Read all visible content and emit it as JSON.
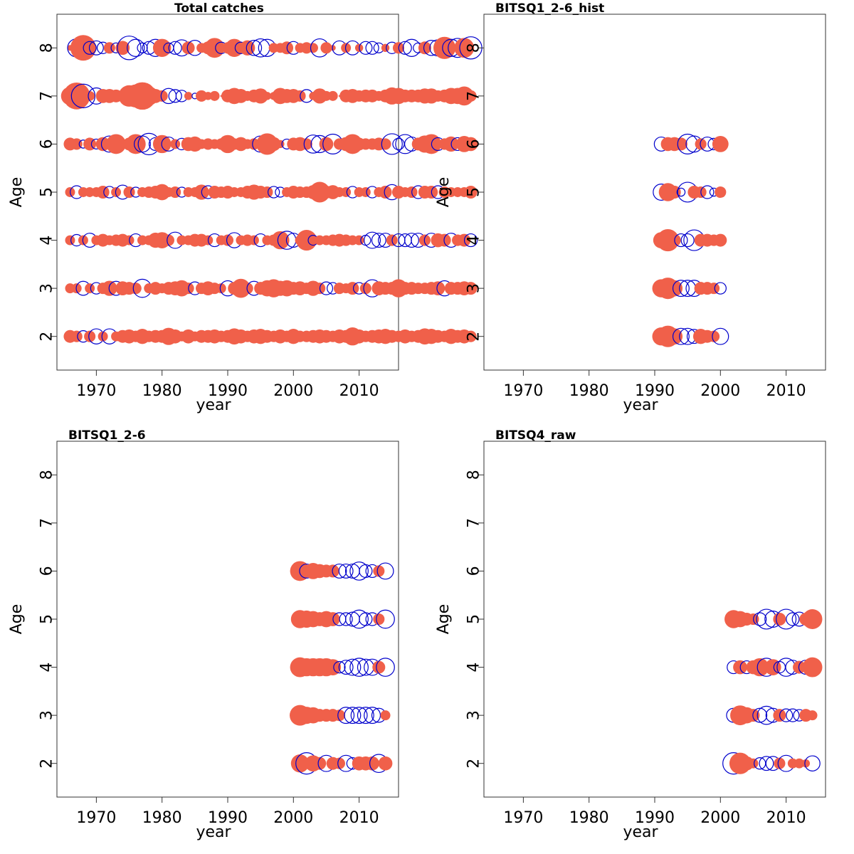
{
  "colors": {
    "positive": "#f0604a",
    "negative": "#0000cc"
  },
  "chart_data": [
    {
      "type": "bubble",
      "title": "Total catches",
      "xlabel": "year",
      "ylabel": "Age",
      "xlim": [
        1964,
        2016
      ],
      "ylim": [
        1.3,
        8.7
      ],
      "xticks": [
        1970,
        1980,
        1990,
        2000,
        2010
      ],
      "yticks": [
        2,
        3,
        4,
        5,
        6,
        7,
        8
      ],
      "ages": [
        2,
        3,
        4,
        5,
        6,
        7,
        8
      ],
      "year_start": 1966,
      "residuals": {
        "8": [
          0.1,
          -1.0,
          2.0,
          -0.5,
          -0.6,
          -0.4,
          0.4,
          -0.3,
          0.6,
          -1.7,
          -0.9,
          -0.3,
          -0.5,
          -0.9,
          1.0,
          -0.3,
          -0.5,
          -0.8,
          0.5,
          -0.7,
          0.3,
          0.5,
          1.2,
          -0.4,
          0.4,
          1.0,
          -0.4,
          0.7,
          -0.7,
          -1.0,
          -0.9,
          0.3,
          0.3,
          0.5,
          -0.5,
          0.3,
          0.4,
          0.3,
          -1.0,
          0.4,
          0.1,
          -0.6,
          0.3,
          -0.6,
          0.2,
          -0.5,
          -0.5,
          -0.3,
          0.2,
          -0.4,
          0.4,
          -0.5,
          -0.9,
          -0.3,
          0.5,
          -0.7,
          -0.8,
          1.5,
          -0.9,
          -1.1,
          1.2,
          -1.5
        ],
        "7": [
          1.0,
          2.2,
          -1.7,
          0.3,
          -0.8,
          0.6,
          0.6,
          0.5,
          0.3,
          1.4,
          1.6,
          2.3,
          1.1,
          0.6,
          0.4,
          -0.7,
          -0.5,
          -0.4,
          0.2,
          -0.1,
          0.4,
          0.2,
          0.3,
          0.0,
          0.5,
          0.8,
          0.6,
          0.3,
          0.5,
          0.7,
          0.2,
          0.2,
          0.8,
          0.6,
          0.6,
          0.4,
          -0.5,
          0.2,
          0.7,
          0.3,
          0.3,
          0.0,
          0.5,
          0.6,
          0.4,
          0.5,
          0.5,
          0.3,
          0.5,
          0.9,
          0.8,
          0.5,
          0.5,
          0.5,
          0.7,
          0.7,
          0.4,
          0.5,
          0.8,
          0.8,
          1.1,
          0.4
        ],
        "6": [
          0.5,
          0.4,
          -0.2,
          0.5,
          -0.3,
          0.6,
          -0.8,
          1.2,
          0.3,
          0.5,
          1.2,
          -0.8,
          -1.4,
          -0.5,
          1.0,
          -0.6,
          0.3,
          -0.4,
          0.6,
          0.7,
          0.3,
          0.4,
          0.3,
          0.4,
          1.0,
          0.4,
          0.6,
          0.3,
          0.4,
          -0.8,
          1.4,
          0.6,
          0.2,
          -0.3,
          0.5,
          0.6,
          0.4,
          -1.0,
          -0.9,
          0.6,
          -1.2,
          0.4,
          0.6,
          1.2,
          0.5,
          0.4,
          0.4,
          0.5,
          0.4,
          -1.3,
          -0.4,
          -1.1,
          -0.6,
          0.5,
          0.9,
          1.2,
          -0.5,
          0.4,
          0.7,
          -0.5,
          0.8,
          0.6
        ],
        "5": [
          0.3,
          -0.5,
          0.3,
          0.3,
          0.3,
          0.5,
          -0.4,
          0.3,
          -0.6,
          0.4,
          -0.3,
          0.3,
          0.4,
          0.5,
          0.8,
          0.3,
          0.4,
          -0.3,
          0.3,
          0.3,
          0.7,
          -0.5,
          0.5,
          0.4,
          0.5,
          0.3,
          0.3,
          0.5,
          0.7,
          0.5,
          0.4,
          -0.4,
          -0.3,
          0.3,
          0.5,
          0.4,
          0.4,
          0.6,
          1.3,
          0.5,
          0.6,
          0.3,
          0.3,
          -0.4,
          0.3,
          0.3,
          -0.4,
          0.3,
          0.5,
          -0.7,
          0.5,
          0.3,
          0.4,
          -0.5,
          0.5,
          0.5,
          -0.5,
          0.4,
          0.3,
          0.3,
          0.3,
          0.5
        ],
        "4": [
          0.3,
          -0.4,
          0.3,
          -0.6,
          0.3,
          0.5,
          0.3,
          0.4,
          0.5,
          0.3,
          -0.5,
          0.3,
          0.3,
          0.7,
          0.8,
          0.4,
          -0.8,
          0.3,
          0.3,
          0.5,
          0.5,
          0.3,
          -0.5,
          0.3,
          0.4,
          -0.7,
          0.3,
          0.4,
          0.3,
          -0.5,
          0.3,
          0.4,
          1.0,
          -1.0,
          -0.6,
          0.3,
          1.3,
          -0.3,
          0.3,
          0.3,
          0.4,
          0.5,
          0.4,
          0.3,
          0.3,
          -0.3,
          -0.8,
          -0.6,
          -0.6,
          0.4,
          -0.5,
          -0.5,
          -0.6,
          -0.6,
          0.4,
          -0.6,
          0.6,
          0.5,
          -0.6,
          0.4,
          0.5,
          -0.5
        ],
        "3": [
          0.3,
          0.3,
          -0.6,
          0.3,
          -0.4,
          0.4,
          0.7,
          -0.6,
          0.6,
          0.5,
          0.4,
          -1.0,
          0.3,
          0.5,
          0.3,
          0.5,
          0.6,
          0.8,
          0.4,
          -0.5,
          0.4,
          0.6,
          0.4,
          0.3,
          -0.7,
          0.5,
          1.1,
          0.4,
          -0.6,
          0.5,
          0.8,
          1.0,
          0.7,
          0.8,
          0.5,
          0.6,
          0.4,
          0.7,
          0.4,
          -0.5,
          -0.4,
          0.4,
          0.3,
          0.5,
          -0.4,
          0.4,
          -0.9,
          0.6,
          0.5,
          0.5,
          1.0,
          0.5,
          0.5,
          0.4,
          0.4,
          0.5,
          0.6,
          -0.7,
          0.5,
          0.5,
          0.6,
          0.5
        ],
        "2": [
          0.5,
          0.4,
          -0.4,
          0.4,
          -0.7,
          0.3,
          -0.7,
          0.3,
          0.5,
          0.6,
          0.4,
          0.7,
          0.4,
          0.5,
          0.5,
          0.9,
          0.6,
          0.3,
          0.6,
          0.3,
          0.5,
          0.5,
          0.6,
          0.4,
          0.5,
          0.8,
          0.6,
          0.4,
          0.6,
          0.7,
          0.5,
          0.4,
          0.6,
          0.4,
          0.7,
          0.4,
          0.4,
          0.5,
          0.6,
          0.5,
          0.4,
          0.6,
          0.5,
          1.0,
          0.6,
          0.4,
          0.5,
          0.6,
          0.7,
          0.5,
          0.4,
          0.6,
          0.4,
          0.5,
          0.8,
          0.7,
          0.5,
          0.4,
          0.7,
          0.5,
          0.6,
          0.4
        ]
      }
    },
    {
      "type": "bubble",
      "title": "BITSQ1_2-6_hist",
      "xlabel": "year",
      "ylabel": "Age",
      "xlim": [
        1964,
        2016
      ],
      "ylim": [
        1.3,
        8.7
      ],
      "xticks": [
        1970,
        1980,
        1990,
        2000,
        2010
      ],
      "yticks": [
        2,
        3,
        4,
        5,
        6,
        7,
        8
      ],
      "ages": [
        2,
        3,
        4,
        5,
        6
      ],
      "year_start": 1991,
      "residuals": {
        "6": [
          -0.6,
          0.6,
          0.6,
          0.5,
          -1.2,
          -0.8,
          0.4,
          -0.6,
          -0.4,
          0.8
        ],
        "5": [
          -0.8,
          1.0,
          0.5,
          -0.2,
          -1.2,
          0.5,
          0.4,
          -0.5,
          -0.2,
          0.4
        ],
        "4": [
          0.8,
          1.5,
          0.5,
          -0.5,
          -0.5,
          -1.3,
          0.5,
          0.5,
          0.4,
          0.5
        ],
        "3": [
          1.0,
          1.4,
          0.8,
          -0.8,
          -0.8,
          -0.8,
          0.5,
          0.5,
          0.4,
          -0.4
        ],
        "2": [
          1.0,
          1.4,
          0.8,
          -0.8,
          -0.8,
          -0.6,
          0.7,
          0.5,
          0.4,
          -0.8
        ]
      }
    },
    {
      "type": "bubble",
      "title": "BITSQ1_2-6",
      "xlabel": "year",
      "ylabel": "Age",
      "xlim": [
        1964,
        2016
      ],
      "ylim": [
        1.3,
        8.7
      ],
      "xticks": [
        1970,
        1980,
        1990,
        2000,
        2010
      ],
      "yticks": [
        2,
        3,
        4,
        5,
        6,
        7,
        8
      ],
      "ages": [
        2,
        3,
        4,
        5,
        6
      ],
      "year_start": 2001,
      "residuals": {
        "6": [
          1.2,
          -0.6,
          0.8,
          0.6,
          0.5,
          0.5,
          -0.6,
          -0.6,
          -0.6,
          -1.0,
          -0.5,
          -0.5,
          0.4,
          -0.8
        ],
        "5": [
          1.0,
          0.9,
          0.8,
          0.6,
          0.8,
          0.6,
          -0.5,
          -0.5,
          -0.6,
          -1.0,
          -0.5,
          -0.5,
          0.4,
          -1.0
        ],
        "4": [
          1.2,
          1.0,
          1.0,
          1.0,
          1.0,
          0.8,
          -0.4,
          -0.6,
          -0.8,
          -1.0,
          -0.8,
          -0.8,
          0.5,
          -1.0
        ],
        "3": [
          1.3,
          0.9,
          0.8,
          0.5,
          0.5,
          0.5,
          0.4,
          -0.8,
          -0.8,
          -0.8,
          -0.8,
          -0.8,
          -0.6,
          0.3
        ],
        "2": [
          1.0,
          -1.4,
          0.8,
          0.5,
          -0.8,
          0.5,
          0.4,
          -0.8,
          -0.4,
          0.6,
          0.6,
          0.6,
          -1.0,
          0.6
        ]
      }
    },
    {
      "type": "bubble",
      "title": "BITSQ4_raw",
      "xlabel": "year",
      "ylabel": "Age",
      "xlim": [
        1964,
        2016
      ],
      "ylim": [
        1.3,
        8.7
      ],
      "xticks": [
        1970,
        1980,
        1990,
        2000,
        2010
      ],
      "yticks": [
        2,
        3,
        4,
        5,
        6,
        7,
        8
      ],
      "ages": [
        2,
        3,
        4,
        5
      ],
      "year_start": 2002,
      "residuals": {
        "5": [
          1.0,
          0.8,
          0.5,
          0.4,
          -0.5,
          -1.2,
          -0.8,
          0.5,
          -1.2,
          -0.5,
          -0.6,
          0.5,
          1.2
        ],
        "4": [
          -0.5,
          0.6,
          -0.5,
          0.6,
          1.0,
          -1.0,
          0.8,
          -0.4,
          -1.0,
          -0.6,
          0.5,
          -0.6,
          1.2
        ],
        "3": [
          -0.6,
          1.2,
          0.8,
          0.5,
          -0.6,
          -1.0,
          -0.6,
          0.5,
          -0.5,
          -0.5,
          -0.4,
          0.5,
          0.3
        ],
        "2": [
          -1.4,
          1.4,
          0.6,
          0.3,
          -0.4,
          -0.6,
          -0.6,
          0.4,
          -0.8,
          0.3,
          0.3,
          0.2,
          -0.7
        ]
      }
    }
  ]
}
